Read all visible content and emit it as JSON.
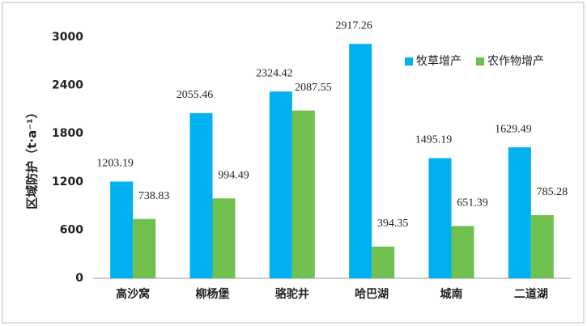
{
  "chart_data": {
    "type": "bar",
    "y_label": "区域防护（t·a⁻¹）",
    "categories": [
      "高沙窝",
      "柳杨堡",
      "骆驼井",
      "哈巴湖",
      "城南",
      "二道湖"
    ],
    "series": [
      {
        "name": "牧草增产",
        "color": "#00b0f0",
        "values": [
          1203.19,
          2055.46,
          2324.42,
          2917.26,
          1495.19,
          1629.49
        ]
      },
      {
        "name": "农作物增产",
        "color": "#70c050",
        "values": [
          738.83,
          994.49,
          2087.55,
          394.35,
          651.39,
          785.28
        ]
      }
    ],
    "ylim": [
      0,
      3000
    ],
    "yticks": [
      0,
      600,
      1200,
      1800,
      2400,
      3000
    ],
    "grid": false,
    "legend": "top-right"
  }
}
